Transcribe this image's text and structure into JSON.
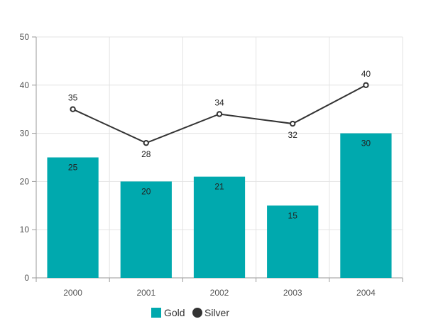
{
  "chart_data": {
    "type": "bar",
    "categories": [
      "2000",
      "2001",
      "2002",
      "2003",
      "2004"
    ],
    "series": [
      {
        "name": "Gold",
        "type": "bar",
        "values": [
          25,
          20,
          21,
          15,
          30
        ],
        "color": "#00A9AE"
      },
      {
        "name": "Silver",
        "type": "line",
        "values": [
          35,
          28,
          34,
          32,
          40
        ],
        "color": "#333333"
      }
    ],
    "ylim": [
      0,
      50
    ],
    "yticks": [
      "0",
      "10",
      "20",
      "30",
      "40",
      "50"
    ],
    "grid": true,
    "legend": "bottom"
  }
}
